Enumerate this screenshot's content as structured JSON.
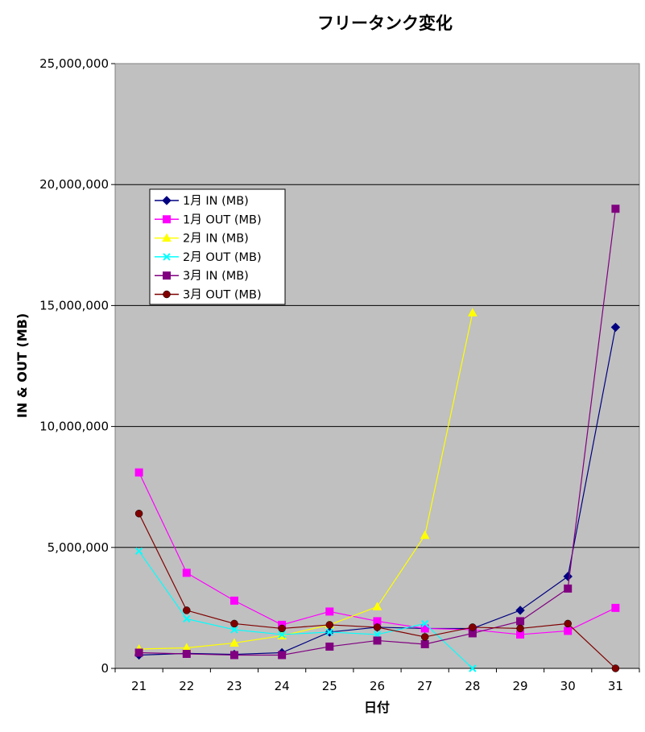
{
  "chart_data": {
    "type": "line",
    "title": "フリータンク変化",
    "xlabel": "日付",
    "ylabel": "IN & OUT (MB)",
    "categories": [
      "21",
      "22",
      "23",
      "24",
      "25",
      "26",
      "27",
      "28",
      "29",
      "30",
      "31"
    ],
    "ylim": [
      0,
      25000000
    ],
    "yticks": [
      {
        "value": 0,
        "label": "0"
      },
      {
        "value": 5000000,
        "label": "5,000,000"
      },
      {
        "value": 10000000,
        "label": "10,000,000"
      },
      {
        "value": 15000000,
        "label": "15,000,000"
      },
      {
        "value": 20000000,
        "label": "20,000,000"
      },
      {
        "value": 25000000,
        "label": "25,000,000"
      }
    ],
    "grid": "horizontal",
    "background": "#c0c0c0",
    "legend_position": "top-left",
    "series": [
      {
        "name": "1月 IN (MB)",
        "color": "#000080",
        "marker": "diamond",
        "values": [
          550000,
          620000,
          580000,
          650000,
          1500000,
          1700000,
          1650000,
          1650000,
          2400000,
          3800000,
          14100000
        ]
      },
      {
        "name": "1月 OUT (MB)",
        "color": "#ff00ff",
        "marker": "square",
        "values": [
          8100000,
          3950000,
          2800000,
          1800000,
          2350000,
          1950000,
          1650000,
          1600000,
          1400000,
          1550000,
          2500000
        ]
      },
      {
        "name": "2月 IN (MB)",
        "color": "#ffff00",
        "marker": "triangle",
        "values": [
          800000,
          850000,
          1050000,
          1350000,
          1800000,
          2550000,
          5500000,
          14700000,
          null,
          null,
          null
        ]
      },
      {
        "name": "2月 OUT (MB)",
        "color": "#00ffff",
        "marker": "x",
        "values": [
          4850000,
          2050000,
          1600000,
          1400000,
          1500000,
          1400000,
          1850000,
          0,
          null,
          null,
          null
        ]
      },
      {
        "name": "3月 IN (MB)",
        "color": "#800080",
        "marker": "square",
        "values": [
          650000,
          600000,
          550000,
          550000,
          900000,
          1150000,
          1000000,
          1450000,
          1950000,
          3300000,
          19000000
        ]
      },
      {
        "name": "3月 OUT (MB)",
        "color": "#800000",
        "marker": "circle",
        "values": [
          6400000,
          2400000,
          1850000,
          1650000,
          1800000,
          1700000,
          1300000,
          1700000,
          1650000,
          1850000,
          0
        ]
      }
    ]
  }
}
